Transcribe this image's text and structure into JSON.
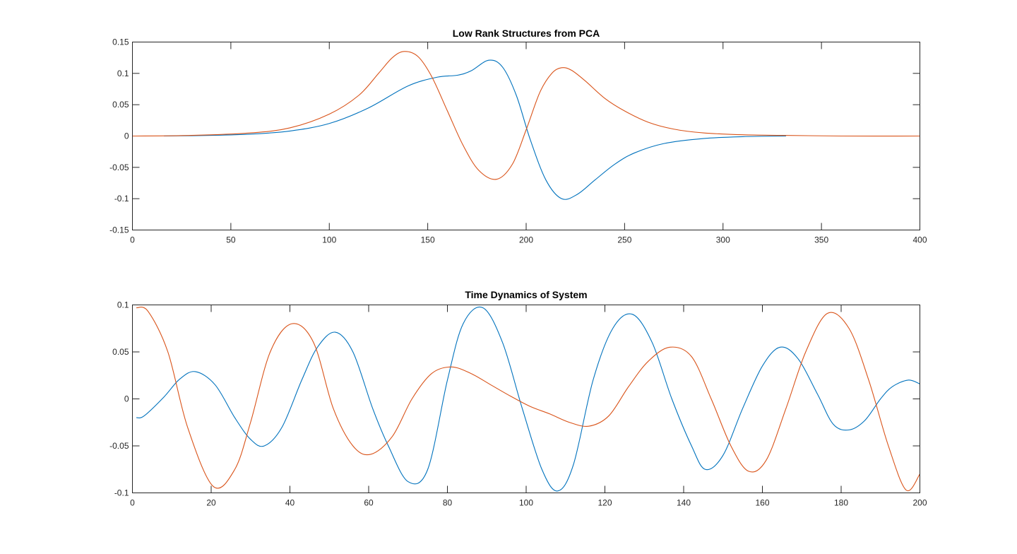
{
  "figure_background": "#ffffff",
  "chart_data": [
    {
      "type": "line",
      "title": "Low Rank Structures from PCA",
      "xlabel": "",
      "ylabel": "",
      "xlim": [
        0,
        400
      ],
      "ylim": [
        -0.15,
        0.15
      ],
      "xticks": [
        0,
        50,
        100,
        150,
        200,
        250,
        300,
        350,
        400
      ],
      "yticks": [
        -0.15,
        -0.1,
        -0.05,
        0,
        0.05,
        0.1,
        0.15
      ],
      "xtick_labels": [
        "0",
        "50",
        "100",
        "150",
        "200",
        "250",
        "300",
        "350",
        "400"
      ],
      "ytick_labels": [
        "-0.15",
        "-0.1",
        "-0.05",
        "0",
        "0.05",
        "0.1",
        "0.15"
      ],
      "grid": false,
      "legend": "none",
      "series": [
        {
          "color": "#0072BD",
          "x": [
            16,
            40,
            60,
            80,
            100,
            120,
            140,
            155,
            165,
            172,
            181,
            188,
            195,
            202,
            210,
            218,
            226,
            235,
            245,
            255,
            270,
            290,
            310,
            332
          ],
          "y": [
            0,
            0.001,
            0.003,
            0.008,
            0.02,
            0.045,
            0.08,
            0.094,
            0.097,
            0.104,
            0.121,
            0.11,
            0.065,
            -0.005,
            -0.07,
            -0.1,
            -0.093,
            -0.07,
            -0.045,
            -0.027,
            -0.012,
            -0.004,
            -0.001,
            0
          ]
        },
        {
          "color": "#D95319",
          "x": [
            0,
            30,
            60,
            80,
            100,
            115,
            125,
            132,
            138,
            145,
            152,
            160,
            168,
            176,
            185,
            193,
            200,
            207,
            213,
            218,
            223,
            230,
            240,
            250,
            262,
            275,
            290,
            310,
            330,
            360,
            400
          ],
          "y": [
            0,
            0.001,
            0.005,
            0.013,
            0.035,
            0.065,
            0.1,
            0.125,
            0.135,
            0.127,
            0.095,
            0.04,
            -0.015,
            -0.055,
            -0.069,
            -0.045,
            0.01,
            0.07,
            0.1,
            0.109,
            0.105,
            0.088,
            0.06,
            0.04,
            0.022,
            0.011,
            0.005,
            0.002,
            0.001,
            0,
            0
          ]
        }
      ]
    },
    {
      "type": "line",
      "title": "Time Dynamics of System",
      "xlabel": "",
      "ylabel": "",
      "xlim": [
        0,
        200
      ],
      "ylim": [
        -0.1,
        0.1
      ],
      "xticks": [
        0,
        20,
        40,
        60,
        80,
        100,
        120,
        140,
        160,
        180,
        200
      ],
      "yticks": [
        -0.1,
        -0.05,
        0,
        0.05,
        0.1
      ],
      "xtick_labels": [
        "0",
        "20",
        "40",
        "60",
        "80",
        "100",
        "120",
        "140",
        "160",
        "180",
        "200"
      ],
      "ytick_labels": [
        "-0.1",
        "-0.05",
        "0",
        "0.05",
        "0.1"
      ],
      "grid": false,
      "legend": "none",
      "series": [
        {
          "color": "#0072BD",
          "x": [
            1,
            3,
            8,
            12,
            16,
            21,
            26,
            30,
            33.5,
            38,
            43,
            47,
            51.5,
            56,
            61,
            65,
            70,
            75,
            80,
            84,
            89,
            94,
            99,
            104,
            108,
            112,
            117,
            122,
            127,
            132,
            137,
            142,
            145.5,
            150,
            155,
            160,
            164.5,
            169,
            174,
            178,
            182,
            186,
            190,
            193,
            197,
            200
          ],
          "y": [
            -0.02,
            -0.018,
            0.002,
            0.021,
            0.029,
            0.015,
            -0.02,
            -0.043,
            -0.05,
            -0.03,
            0.02,
            0.055,
            0.071,
            0.05,
            -0.01,
            -0.05,
            -0.088,
            -0.075,
            0.02,
            0.08,
            0.097,
            0.06,
            -0.01,
            -0.075,
            -0.098,
            -0.07,
            0.02,
            0.075,
            0.09,
            0.06,
            0.0,
            -0.05,
            -0.075,
            -0.06,
            -0.01,
            0.035,
            0.055,
            0.043,
            0.005,
            -0.027,
            -0.033,
            -0.023,
            0.0,
            0.013,
            0.02,
            0.016
          ]
        },
        {
          "color": "#D95319",
          "x": [
            1,
            4,
            9,
            14,
            20.5,
            26,
            30,
            35,
            40.5,
            46,
            51,
            56,
            60.5,
            66,
            71,
            76,
            81,
            86,
            91,
            96,
            101,
            106,
            111,
            116,
            121,
            126,
            131,
            136.5,
            142,
            147,
            152,
            156.5,
            161,
            166,
            171,
            176.5,
            182,
            187,
            192,
            196.5,
            200
          ],
          "y": [
            0.097,
            0.093,
            0.05,
            -0.03,
            -0.093,
            -0.075,
            -0.025,
            0.05,
            0.08,
            0.06,
            -0.01,
            -0.05,
            -0.059,
            -0.04,
            0.0,
            0.027,
            0.034,
            0.027,
            0.015,
            0.003,
            -0.008,
            -0.016,
            -0.025,
            -0.029,
            -0.018,
            0.013,
            0.04,
            0.055,
            0.045,
            0.0,
            -0.05,
            -0.077,
            -0.065,
            -0.01,
            0.05,
            0.091,
            0.075,
            0.02,
            -0.05,
            -0.097,
            -0.08
          ]
        }
      ]
    }
  ]
}
